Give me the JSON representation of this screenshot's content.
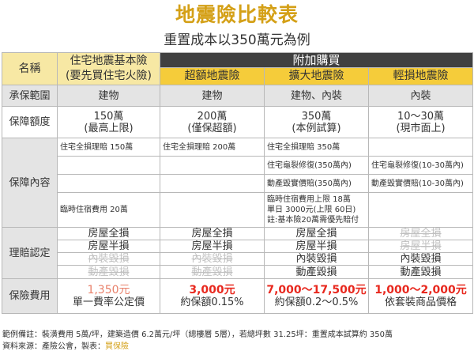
{
  "title": "地震險比較表",
  "subtitle": "重置成本以350萬元為例",
  "header": {
    "name_label": "名稱",
    "basic_line1": "住宅地震基本險",
    "basic_line2": "(要先買住宅火險)",
    "addon_label": "附加購買",
    "excess": "超額地震險",
    "extended": "擴大地震險",
    "minor": "輕損地震險"
  },
  "coverage_scope": {
    "label": "承保範圍",
    "basic": "建物",
    "excess": "建物",
    "extended": "建物、內裝",
    "minor": "內裝"
  },
  "coverage_amount": {
    "label": "保障額度",
    "basic": [
      "150萬",
      "(最高上限)"
    ],
    "excess": [
      "200萬",
      "(僅保超額)"
    ],
    "extended": [
      "350萬",
      "(本例試算)"
    ],
    "minor": [
      "10～30萬",
      "(現市面上)"
    ]
  },
  "coverage_content": {
    "label": "保障內容",
    "basic": [
      "住宅全損理賠 150萬",
      "",
      "",
      "臨時住宿費用 20萬"
    ],
    "excess": [
      "住宅全損理賠 200萬",
      "",
      "",
      ""
    ],
    "extended": [
      "住宅全損理賠 350萬",
      "住宅龜裂修復(350萬內)",
      "動產毀實價賠(350萬內)",
      "臨時住宿費用上限 18萬",
      "單日 3000元(上限 60日)",
      "註:基本險20萬需優先賠付"
    ],
    "minor": [
      "",
      "住宅龜裂修復(10-30萬內)",
      "動產毀實價賠(10-30萬內)",
      ""
    ]
  },
  "claims": {
    "label": "理賠認定",
    "rows": [
      {
        "basic": "房屋全損",
        "excess": "房屋全損",
        "extended": "房屋全損",
        "minor": "房屋全損"
      },
      {
        "basic": "房屋半損",
        "excess": "房屋半損",
        "extended": "房屋半損",
        "minor": "房屋半損"
      },
      {
        "basic": "內裝毀損",
        "excess": "內裝毀損",
        "extended": "內裝毀損",
        "minor": "內裝毀損"
      },
      {
        "basic": "動產毀損",
        "excess": "動產毀損",
        "extended": "動產毀損",
        "minor": "動產毀損"
      }
    ]
  },
  "premium": {
    "label": "保險費用",
    "basic": [
      "1,350元",
      "單一費率公定價"
    ],
    "excess": [
      "3,000元",
      "約保額0.15%"
    ],
    "extended": [
      "7,000～17,500元",
      "約保額0.2～0.5%"
    ],
    "minor": [
      "1,000～2,000元",
      "依套裝商品價格"
    ]
  },
  "footer": {
    "note": "範例備註：裝潢費用 5萬/坪，建築造價 6.2萬元/坪（總樓層 5層），若總坪數 31.25坪：重置成本試算約 350萬",
    "source_prefix": "資料來源：產險公會，製表：",
    "brand": "買保險"
  },
  "colors": {
    "title": "#d4a017",
    "header_yellow": "#f7e8a4",
    "header_gold": "#f5cc3a",
    "header_dark": "#404040",
    "premium_red": "#e8281e",
    "premium_salmon": "#e8806a"
  }
}
